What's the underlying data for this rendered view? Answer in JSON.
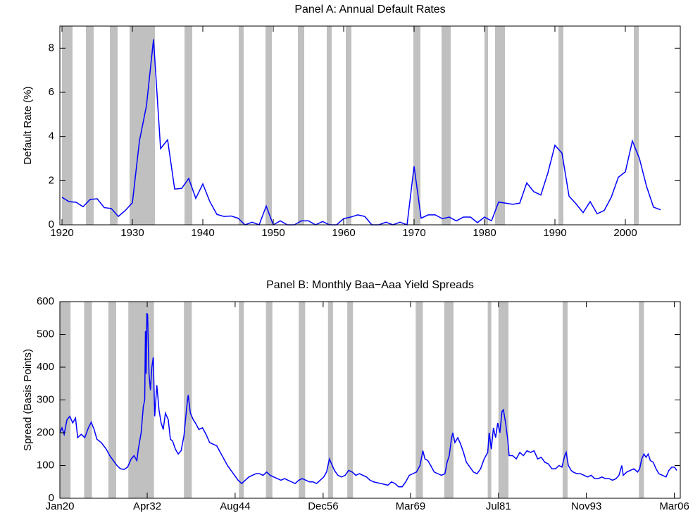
{
  "chart_data": [
    {
      "type": "line",
      "title": "Panel A: Annual Default Rates",
      "ylabel": "Default Rate (%)",
      "color": "#0000ff",
      "shade_color": "#c0c0c0",
      "xlim": [
        1919.7,
        2007.8
      ],
      "ylim": [
        0,
        9
      ],
      "xticks": [
        1920,
        1930,
        1940,
        1950,
        1960,
        1970,
        1980,
        1990,
        2000
      ],
      "yticks": [
        0,
        2,
        4,
        6,
        8
      ],
      "shaded": [
        [
          1920.0,
          1921.5
        ],
        [
          1923.4,
          1924.5
        ],
        [
          1926.8,
          1927.9
        ],
        [
          1929.6,
          1933.2
        ],
        [
          1937.4,
          1938.5
        ],
        [
          1945.1,
          1945.8
        ],
        [
          1948.9,
          1949.8
        ],
        [
          1953.5,
          1954.4
        ],
        [
          1957.6,
          1958.3
        ],
        [
          1960.3,
          1961.1
        ],
        [
          1969.9,
          1970.9
        ],
        [
          1973.9,
          1975.2
        ],
        [
          1980.0,
          1980.5
        ],
        [
          1981.5,
          1982.9
        ],
        [
          1990.5,
          1991.2
        ],
        [
          2001.2,
          2001.9
        ]
      ],
      "x": [
        1920,
        1921,
        1922,
        1923,
        1924,
        1925,
        1926,
        1927,
        1928,
        1929,
        1930,
        1931,
        1932,
        1933,
        1934,
        1935,
        1936,
        1937,
        1938,
        1939,
        1940,
        1941,
        1942,
        1943,
        1944,
        1945,
        1946,
        1947,
        1948,
        1949,
        1950,
        1951,
        1952,
        1953,
        1954,
        1955,
        1956,
        1957,
        1958,
        1959,
        1960,
        1961,
        1962,
        1963,
        1964,
        1965,
        1966,
        1967,
        1968,
        1969,
        1970,
        1971,
        1972,
        1973,
        1974,
        1975,
        1976,
        1977,
        1978,
        1979,
        1980,
        1981,
        1982,
        1983,
        1984,
        1985,
        1986,
        1987,
        1988,
        1989,
        1990,
        1991,
        1992,
        1993,
        1994,
        1995,
        1996,
        1997,
        1998,
        1999,
        2000,
        2001,
        2002,
        2003,
        2004,
        2005
      ],
      "values": [
        1.25,
        1.05,
        1.02,
        0.82,
        1.15,
        1.18,
        0.78,
        0.74,
        0.38,
        0.65,
        1.0,
        3.8,
        5.4,
        8.4,
        3.45,
        3.85,
        1.62,
        1.65,
        2.1,
        1.2,
        1.85,
        1.05,
        0.47,
        0.38,
        0.4,
        0.3,
        0.0,
        0.12,
        0.0,
        0.85,
        0.0,
        0.18,
        0.0,
        0.0,
        0.18,
        0.18,
        0.0,
        0.15,
        0.0,
        0.0,
        0.28,
        0.35,
        0.45,
        0.38,
        0.0,
        0.0,
        0.12,
        0.0,
        0.12,
        0.0,
        2.65,
        0.3,
        0.45,
        0.45,
        0.28,
        0.35,
        0.18,
        0.35,
        0.35,
        0.1,
        0.35,
        0.18,
        1.03,
        0.98,
        0.93,
        0.98,
        1.9,
        1.5,
        1.35,
        2.35,
        3.6,
        3.25,
        1.3,
        0.95,
        0.55,
        1.05,
        0.5,
        0.65,
        1.25,
        2.15,
        2.4,
        3.8,
        3.0,
        1.75,
        0.8,
        0.68
      ]
    },
    {
      "type": "line",
      "title": "Panel B: Monthly Baa−Aaa Yield Spreads",
      "ylabel": "Spread (Basis Points)",
      "color": "#0000ff",
      "shade_color": "#c0c0c0",
      "xlim": [
        1920,
        2007
      ],
      "ylim": [
        0,
        600
      ],
      "xticks": [
        {
          "value": 1920.0,
          "label": "Jan20"
        },
        {
          "value": 1932.25,
          "label": "Apr32"
        },
        {
          "value": 1944.58,
          "label": "Aug44"
        },
        {
          "value": 1956.92,
          "label": "Dec56"
        },
        {
          "value": 1969.17,
          "label": "Mar69"
        },
        {
          "value": 1981.5,
          "label": "Jul81"
        },
        {
          "value": 1993.83,
          "label": "Nov93"
        },
        {
          "value": 2006.17,
          "label": "Mar06"
        }
      ],
      "yticks": [
        0,
        100,
        200,
        300,
        400,
        500,
        600
      ],
      "shaded": [
        [
          1920.0,
          1921.5
        ],
        [
          1923.4,
          1924.5
        ],
        [
          1926.8,
          1927.9
        ],
        [
          1929.6,
          1933.2
        ],
        [
          1937.4,
          1938.5
        ],
        [
          1945.1,
          1945.8
        ],
        [
          1948.9,
          1949.8
        ],
        [
          1953.5,
          1954.4
        ],
        [
          1957.6,
          1958.3
        ],
        [
          1960.3,
          1961.1
        ],
        [
          1969.9,
          1970.9
        ],
        [
          1973.9,
          1975.2
        ],
        [
          1980.0,
          1980.5
        ],
        [
          1981.5,
          1982.9
        ],
        [
          1990.5,
          1991.2
        ],
        [
          2001.2,
          2001.9
        ]
      ],
      "x": [
        1920.0,
        1920.3,
        1920.6,
        1921.0,
        1921.4,
        1921.8,
        1922.2,
        1922.5,
        1923.0,
        1923.5,
        1924.0,
        1924.4,
        1924.8,
        1925.2,
        1925.8,
        1926.5,
        1927.0,
        1927.5,
        1928.0,
        1928.5,
        1929.0,
        1929.5,
        1930.0,
        1930.4,
        1930.8,
        1931.0,
        1931.4,
        1931.7,
        1931.9,
        1932.0,
        1932.1,
        1932.2,
        1932.3,
        1932.5,
        1932.7,
        1932.9,
        1933.1,
        1933.3,
        1933.6,
        1933.9,
        1934.2,
        1934.5,
        1934.8,
        1935.2,
        1935.5,
        1935.8,
        1936.2,
        1936.6,
        1937.0,
        1937.4,
        1937.8,
        1938.0,
        1938.3,
        1938.7,
        1939.0,
        1939.5,
        1940.0,
        1940.5,
        1941.0,
        1941.5,
        1942.0,
        1942.5,
        1943.0,
        1943.5,
        1944.0,
        1944.5,
        1945.0,
        1945.5,
        1946.0,
        1946.5,
        1947.0,
        1947.5,
        1948.0,
        1948.5,
        1949.0,
        1949.5,
        1950.0,
        1950.5,
        1951.0,
        1951.5,
        1952.0,
        1952.5,
        1953.0,
        1953.5,
        1954.0,
        1954.5,
        1955.0,
        1955.5,
        1956.0,
        1956.5,
        1957.0,
        1957.4,
        1957.8,
        1958.1,
        1958.5,
        1959.0,
        1959.5,
        1960.0,
        1960.5,
        1961.0,
        1961.5,
        1962.0,
        1962.5,
        1963.0,
        1963.5,
        1964.0,
        1965.0,
        1966.0,
        1966.5,
        1967.0,
        1967.5,
        1968.0,
        1968.5,
        1969.0,
        1969.5,
        1970.0,
        1970.5,
        1970.9,
        1971.2,
        1971.6,
        1972.0,
        1972.5,
        1973.0,
        1973.5,
        1974.0,
        1974.3,
        1974.6,
        1974.9,
        1975.1,
        1975.4,
        1975.8,
        1976.2,
        1976.6,
        1977.0,
        1977.5,
        1978.0,
        1978.5,
        1979.0,
        1979.5,
        1980.0,
        1980.2,
        1980.5,
        1980.8,
        1981.1,
        1981.4,
        1981.7,
        1982.0,
        1982.2,
        1982.5,
        1982.8,
        1983.0,
        1983.5,
        1984.0,
        1984.5,
        1985.0,
        1985.5,
        1986.0,
        1986.5,
        1987.0,
        1987.5,
        1988.0,
        1988.5,
        1989.0,
        1989.5,
        1990.0,
        1990.4,
        1990.8,
        1991.0,
        1991.3,
        1991.7,
        1992.0,
        1992.5,
        1993.0,
        1993.5,
        1994.0,
        1994.5,
        1995.0,
        1995.5,
        1996.0,
        1996.5,
        1997.0,
        1997.5,
        1998.0,
        1998.4,
        1998.8,
        1999.0,
        1999.5,
        2000.0,
        2000.5,
        2001.0,
        2001.3,
        2001.6,
        2001.9,
        2002.2,
        2002.5,
        2002.8,
        2003.2,
        2003.6,
        2004.0,
        2004.5,
        2005.0,
        2005.4,
        2005.8,
        2006.2,
        2006.5
      ],
      "values": [
        200,
        215,
        195,
        240,
        250,
        230,
        245,
        185,
        195,
        185,
        215,
        232,
        210,
        180,
        170,
        150,
        130,
        115,
        100,
        90,
        88,
        95,
        120,
        130,
        115,
        150,
        200,
        280,
        300,
        510,
        380,
        565,
        560,
        380,
        330,
        400,
        430,
        250,
        345,
        270,
        230,
        210,
        260,
        240,
        180,
        175,
        150,
        135,
        145,
        190,
        280,
        315,
        260,
        240,
        230,
        210,
        215,
        195,
        170,
        165,
        160,
        140,
        120,
        100,
        85,
        70,
        55,
        45,
        55,
        65,
        70,
        75,
        75,
        70,
        80,
        70,
        65,
        60,
        55,
        60,
        55,
        50,
        45,
        55,
        60,
        55,
        50,
        50,
        45,
        55,
        65,
        80,
        120,
        105,
        85,
        70,
        65,
        70,
        85,
        80,
        70,
        75,
        70,
        65,
        55,
        50,
        45,
        40,
        50,
        45,
        35,
        35,
        50,
        70,
        75,
        80,
        100,
        145,
        120,
        115,
        100,
        80,
        75,
        70,
        75,
        110,
        130,
        180,
        200,
        170,
        185,
        165,
        140,
        110,
        95,
        80,
        75,
        90,
        120,
        140,
        200,
        150,
        215,
        185,
        230,
        200,
        265,
        270,
        230,
        180,
        130,
        130,
        120,
        140,
        130,
        145,
        140,
        145,
        120,
        125,
        110,
        105,
        90,
        90,
        100,
        95,
        130,
        140,
        100,
        85,
        80,
        75,
        75,
        70,
        65,
        70,
        60,
        60,
        65,
        60,
        60,
        55,
        60,
        70,
        100,
        70,
        80,
        85,
        90,
        80,
        90,
        120,
        135,
        125,
        135,
        115,
        110,
        90,
        75,
        70,
        65,
        85,
        95,
        95,
        85
      ]
    }
  ]
}
